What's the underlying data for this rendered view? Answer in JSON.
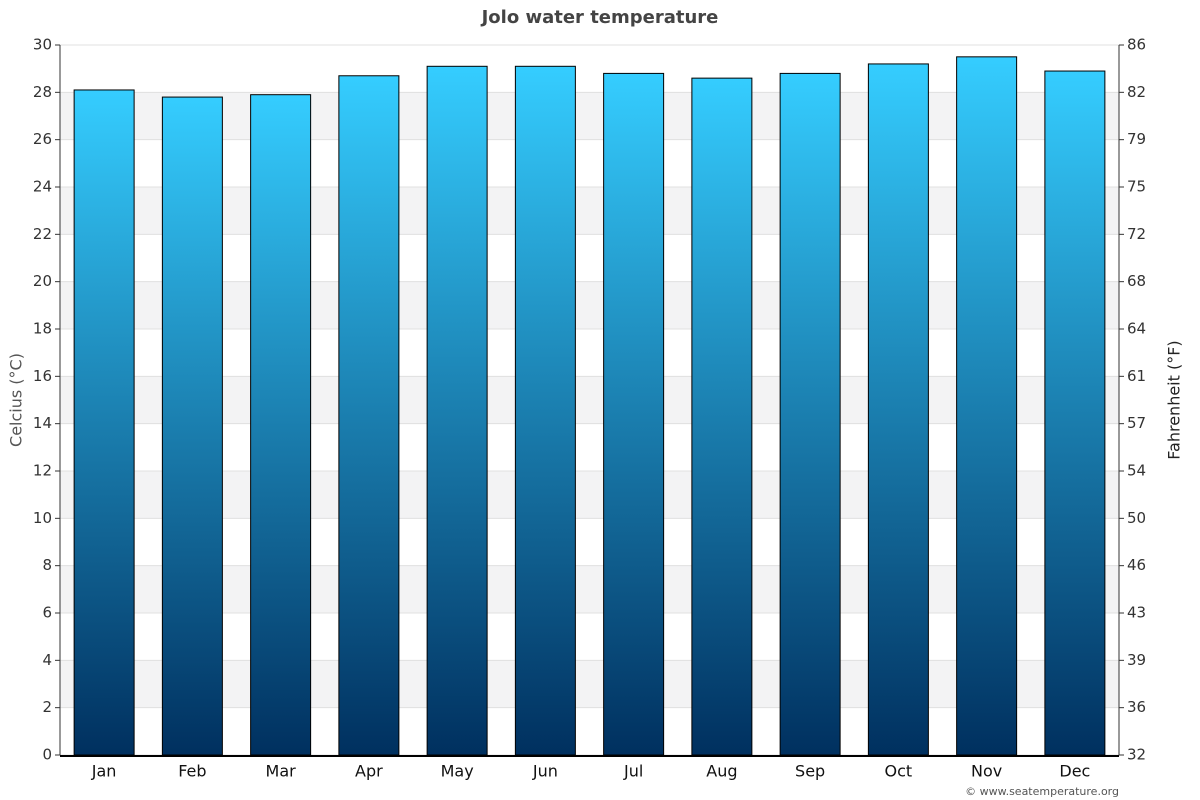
{
  "chart_data": {
    "type": "bar",
    "title": "Jolo water temperature",
    "ylabel": "Celcius (°C)",
    "y2label": "Fahrenheit (°F)",
    "credit": "© www.seatemperature.org",
    "categories": [
      "Jan",
      "Feb",
      "Mar",
      "Apr",
      "May",
      "Jun",
      "Jul",
      "Aug",
      "Sep",
      "Oct",
      "Nov",
      "Dec"
    ],
    "values": [
      28.1,
      27.8,
      27.9,
      28.7,
      29.1,
      29.1,
      28.8,
      28.6,
      28.8,
      29.2,
      29.5,
      28.9
    ],
    "color": [
      "#35cdff",
      "#00305f"
    ],
    "ylim": [
      0,
      30
    ],
    "yticks": [
      0,
      2,
      4,
      6,
      8,
      10,
      12,
      14,
      16,
      18,
      20,
      22,
      24,
      26,
      28,
      30
    ],
    "y2lim": [
      32,
      86
    ],
    "y2ticks": [
      32,
      {
        "value": 35.6,
        "label": "36"
      },
      {
        "value": 39.2,
        "label": "39"
      },
      {
        "value": 42.8,
        "label": "43"
      },
      {
        "value": 46.4,
        "label": "46"
      },
      50,
      {
        "value": 53.6,
        "label": "54"
      },
      {
        "value": 57.2,
        "label": "57"
      },
      {
        "value": 60.8,
        "label": "61"
      },
      {
        "value": 64.4,
        "label": "64"
      },
      68,
      {
        "value": 71.6,
        "label": "72"
      },
      {
        "value": 75.2,
        "label": "75"
      },
      {
        "value": 78.8,
        "label": "79"
      },
      {
        "value": 82.4,
        "label": "82"
      },
      86
    ],
    "grid": true
  }
}
